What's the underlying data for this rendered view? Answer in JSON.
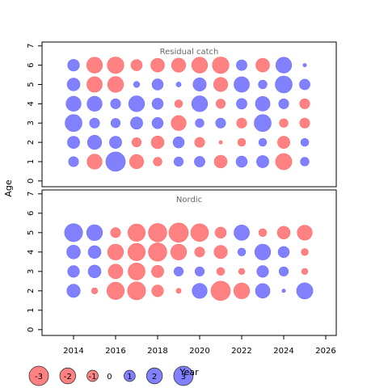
{
  "chart_data": {
    "type": "bubble",
    "x_axis": {
      "label": "Year",
      "ticks": [
        2014,
        2016,
        2018,
        2020,
        2022,
        2024,
        2026
      ],
      "range": [
        2012.5,
        2026.5
      ]
    },
    "y_axis": {
      "label": "Age",
      "ticks": [
        0,
        1,
        2,
        3,
        4,
        5,
        6,
        7
      ],
      "range": [
        -0.3,
        7.2
      ]
    },
    "colors": {
      "positive": "#6b6bff",
      "negative": "#ff6b6b"
    },
    "value_scale_max": 3,
    "panels": [
      {
        "title": "Residual catch",
        "points": [
          {
            "x": 2014,
            "y": 1,
            "v": 0.8
          },
          {
            "x": 2014,
            "y": 2,
            "v": 1.2
          },
          {
            "x": 2014,
            "y": 3,
            "v": 2.3
          },
          {
            "x": 2014,
            "y": 4,
            "v": 1.8
          },
          {
            "x": 2014,
            "y": 5,
            "v": 1.3
          },
          {
            "x": 2014,
            "y": 6,
            "v": 1.1
          },
          {
            "x": 2015,
            "y": 1,
            "v": -1.8
          },
          {
            "x": 2015,
            "y": 2,
            "v": 1.6
          },
          {
            "x": 2015,
            "y": 3,
            "v": 0.8
          },
          {
            "x": 2015,
            "y": 4,
            "v": 1.8
          },
          {
            "x": 2015,
            "y": 5,
            "v": -1.9
          },
          {
            "x": 2015,
            "y": 6,
            "v": -2.0
          },
          {
            "x": 2016,
            "y": 1,
            "v": 3.0
          },
          {
            "x": 2016,
            "y": 2,
            "v": 1.2
          },
          {
            "x": 2016,
            "y": 3,
            "v": 0.7
          },
          {
            "x": 2016,
            "y": 4,
            "v": 0.8
          },
          {
            "x": 2016,
            "y": 5,
            "v": -2.0
          },
          {
            "x": 2016,
            "y": 6,
            "v": -2.2
          },
          {
            "x": 2017,
            "y": 1,
            "v": -1.6
          },
          {
            "x": 2017,
            "y": 2,
            "v": -0.7
          },
          {
            "x": 2017,
            "y": 3,
            "v": 1.2
          },
          {
            "x": 2017,
            "y": 4,
            "v": 2.0
          },
          {
            "x": 2017,
            "y": 5,
            "v": 0.3
          },
          {
            "x": 2017,
            "y": 6,
            "v": -1.0
          },
          {
            "x": 2018,
            "y": 1,
            "v": -0.6
          },
          {
            "x": 2018,
            "y": 2,
            "v": -1.3
          },
          {
            "x": 2018,
            "y": 3,
            "v": 1.0
          },
          {
            "x": 2018,
            "y": 4,
            "v": 1.0
          },
          {
            "x": 2018,
            "y": 5,
            "v": 1.0
          },
          {
            "x": 2018,
            "y": 6,
            "v": -1.5
          },
          {
            "x": 2019,
            "y": 1,
            "v": 0.7
          },
          {
            "x": 2019,
            "y": 2,
            "v": 1.0
          },
          {
            "x": 2019,
            "y": 3,
            "v": -1.8
          },
          {
            "x": 2019,
            "y": 4,
            "v": -0.5
          },
          {
            "x": 2019,
            "y": 5,
            "v": 0.2
          },
          {
            "x": 2019,
            "y": 6,
            "v": -1.6
          },
          {
            "x": 2020,
            "y": 1,
            "v": 0.9
          },
          {
            "x": 2020,
            "y": 2,
            "v": -0.8
          },
          {
            "x": 2020,
            "y": 3,
            "v": 0.6
          },
          {
            "x": 2020,
            "y": 4,
            "v": 2.0
          },
          {
            "x": 2020,
            "y": 5,
            "v": 1.4
          },
          {
            "x": 2020,
            "y": 6,
            "v": -2.0
          },
          {
            "x": 2021,
            "y": 1,
            "v": -1.3
          },
          {
            "x": 2021,
            "y": 2,
            "v": -0.1
          },
          {
            "x": 2021,
            "y": 3,
            "v": 0.8
          },
          {
            "x": 2021,
            "y": 4,
            "v": -0.7
          },
          {
            "x": 2021,
            "y": 5,
            "v": -1.6
          },
          {
            "x": 2021,
            "y": 6,
            "v": -2.2
          },
          {
            "x": 2022,
            "y": 1,
            "v": 1.0
          },
          {
            "x": 2022,
            "y": 2,
            "v": -0.5
          },
          {
            "x": 2022,
            "y": 3,
            "v": -0.8
          },
          {
            "x": 2022,
            "y": 4,
            "v": 0.9
          },
          {
            "x": 2022,
            "y": 5,
            "v": 1.9
          },
          {
            "x": 2022,
            "y": 6,
            "v": 0.9
          },
          {
            "x": 2023,
            "y": 1,
            "v": 1.2
          },
          {
            "x": 2023,
            "y": 2,
            "v": 0.5
          },
          {
            "x": 2023,
            "y": 3,
            "v": 2.3
          },
          {
            "x": 2023,
            "y": 4,
            "v": 1.7
          },
          {
            "x": 2023,
            "y": 5,
            "v": 0.6
          },
          {
            "x": 2023,
            "y": 6,
            "v": -1.5
          },
          {
            "x": 2024,
            "y": 1,
            "v": -2.1
          },
          {
            "x": 2024,
            "y": 2,
            "v": -1.2
          },
          {
            "x": 2024,
            "y": 3,
            "v": -0.6
          },
          {
            "x": 2024,
            "y": 4,
            "v": 0.8
          },
          {
            "x": 2024,
            "y": 5,
            "v": 2.3
          },
          {
            "x": 2024,
            "y": 6,
            "v": 2.0
          },
          {
            "x": 2025,
            "y": 1,
            "v": 0.6
          },
          {
            "x": 2025,
            "y": 2,
            "v": 0.5
          },
          {
            "x": 2025,
            "y": 3,
            "v": -0.8
          },
          {
            "x": 2025,
            "y": 4,
            "v": -0.8
          },
          {
            "x": 2025,
            "y": 5,
            "v": 0.9
          },
          {
            "x": 2025,
            "y": 6,
            "v": 0.1
          }
        ]
      },
      {
        "title": "Nordic",
        "points": [
          {
            "x": 2014,
            "y": 2,
            "v": 1.4
          },
          {
            "x": 2014,
            "y": 3,
            "v": 1.1
          },
          {
            "x": 2014,
            "y": 4,
            "v": 1.5
          },
          {
            "x": 2014,
            "y": 5,
            "v": 2.6
          },
          {
            "x": 2015,
            "y": 2,
            "v": -0.3
          },
          {
            "x": 2015,
            "y": 3,
            "v": 1.3
          },
          {
            "x": 2015,
            "y": 4,
            "v": 1.3
          },
          {
            "x": 2015,
            "y": 5,
            "v": 2.0
          },
          {
            "x": 2016,
            "y": 2,
            "v": -2.4
          },
          {
            "x": 2016,
            "y": 3,
            "v": -1.7
          },
          {
            "x": 2016,
            "y": 4,
            "v": -2.0
          },
          {
            "x": 2016,
            "y": 5,
            "v": -0.8
          },
          {
            "x": 2017,
            "y": 2,
            "v": -2.6
          },
          {
            "x": 2017,
            "y": 3,
            "v": -2.3
          },
          {
            "x": 2017,
            "y": 4,
            "v": -2.4
          },
          {
            "x": 2017,
            "y": 5,
            "v": -2.4
          },
          {
            "x": 2018,
            "y": 2,
            "v": -1.1
          },
          {
            "x": 2018,
            "y": 3,
            "v": -1.2
          },
          {
            "x": 2018,
            "y": 4,
            "v": -2.7
          },
          {
            "x": 2018,
            "y": 5,
            "v": -2.7
          },
          {
            "x": 2019,
            "y": 2,
            "v": -0.2
          },
          {
            "x": 2019,
            "y": 3,
            "v": 0.7
          },
          {
            "x": 2019,
            "y": 4,
            "v": -2.0
          },
          {
            "x": 2019,
            "y": 5,
            "v": -3.0
          },
          {
            "x": 2020,
            "y": 2,
            "v": 1.8
          },
          {
            "x": 2020,
            "y": 3,
            "v": 0.7
          },
          {
            "x": 2020,
            "y": 4,
            "v": -0.8
          },
          {
            "x": 2020,
            "y": 5,
            "v": -2.5
          },
          {
            "x": 2021,
            "y": 2,
            "v": -3.0
          },
          {
            "x": 2021,
            "y": 3,
            "v": -0.5
          },
          {
            "x": 2021,
            "y": 4,
            "v": -1.4
          },
          {
            "x": 2021,
            "y": 5,
            "v": -1.0
          },
          {
            "x": 2022,
            "y": 2,
            "v": -2.0
          },
          {
            "x": 2022,
            "y": 3,
            "v": -0.3
          },
          {
            "x": 2022,
            "y": 4,
            "v": 0.5
          },
          {
            "x": 2022,
            "y": 5,
            "v": 1.9
          },
          {
            "x": 2023,
            "y": 2,
            "v": 1.7
          },
          {
            "x": 2023,
            "y": 3,
            "v": 1.1
          },
          {
            "x": 2023,
            "y": 4,
            "v": 2.0
          },
          {
            "x": 2023,
            "y": 5,
            "v": -0.5
          },
          {
            "x": 2024,
            "y": 2,
            "v": 0.1
          },
          {
            "x": 2024,
            "y": 3,
            "v": 0.7
          },
          {
            "x": 2024,
            "y": 4,
            "v": 1.0
          },
          {
            "x": 2024,
            "y": 5,
            "v": -1.3
          },
          {
            "x": 2025,
            "y": 2,
            "v": 2.1
          },
          {
            "x": 2025,
            "y": 3,
            "v": -0.3
          },
          {
            "x": 2025,
            "y": 4,
            "v": -0.4
          },
          {
            "x": 2025,
            "y": 5,
            "v": -1.8
          }
        ]
      }
    ],
    "legend": {
      "values": [
        -3,
        -2,
        -1,
        0,
        1,
        2,
        3
      ],
      "labels": [
        "-3",
        "-2",
        "-1",
        "0",
        "1",
        "2",
        "3"
      ]
    }
  }
}
